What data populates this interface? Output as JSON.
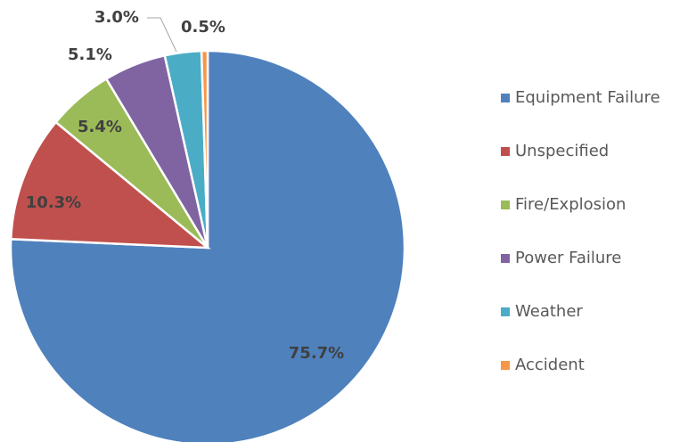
{
  "chart_data": {
    "type": "pie",
    "categories": [
      "Equipment Failure",
      "Unspecified",
      "Fire/Explosion",
      "Power Failure",
      "Weather",
      "Accident"
    ],
    "values": [
      75.7,
      10.3,
      5.4,
      5.1,
      3.0,
      0.5
    ],
    "value_labels": [
      "75.7%",
      "10.3%",
      "5.4%",
      "5.1%",
      "3.0%",
      "0.5%"
    ],
    "colors": [
      "#4f81bd",
      "#c0504d",
      "#9bbb59",
      "#8064a2",
      "#4bacc6",
      "#f79646"
    ],
    "legend": "right"
  }
}
